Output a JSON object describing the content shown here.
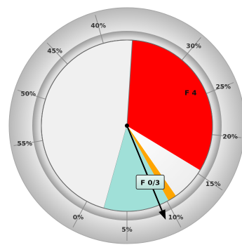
{
  "chart_data": {
    "type": "pie",
    "title": "",
    "dial": {
      "min": 0,
      "max": 60,
      "unit": "%",
      "ticks": [
        {
          "value": 0,
          "label": "0%"
        },
        {
          "value": 5,
          "label": "5%"
        },
        {
          "value": 10,
          "label": "10%"
        },
        {
          "value": 15,
          "label": "15%"
        },
        {
          "value": 20,
          "label": "20%"
        },
        {
          "value": 25,
          "label": "25%"
        },
        {
          "value": 30,
          "label": "30%"
        },
        {
          "value": 40,
          "label": "40%"
        },
        {
          "value": 45,
          "label": "45%"
        },
        {
          "value": 50,
          "label": "50%"
        },
        {
          "value": 55,
          "label": "55%"
        }
      ]
    },
    "sectors": [
      {
        "label": "F 4",
        "start": 15.5,
        "end": 36.5,
        "color": "#ff0000",
        "shown_label": true
      },
      {
        "label": "",
        "start": 36.5,
        "end": 66.5,
        "color": "#f0f0f0",
        "shown_label": false
      },
      {
        "label": "",
        "start": 66.5,
        "end": 74.5,
        "color": "#a0e0d8",
        "shown_label": false
      },
      {
        "label": "",
        "start": 74.5,
        "end": 75.5,
        "color": "#ffa500",
        "shown_label": false
      }
    ],
    "pointer": {
      "label": "F 0/3",
      "value": 9,
      "color": "#000000"
    }
  }
}
